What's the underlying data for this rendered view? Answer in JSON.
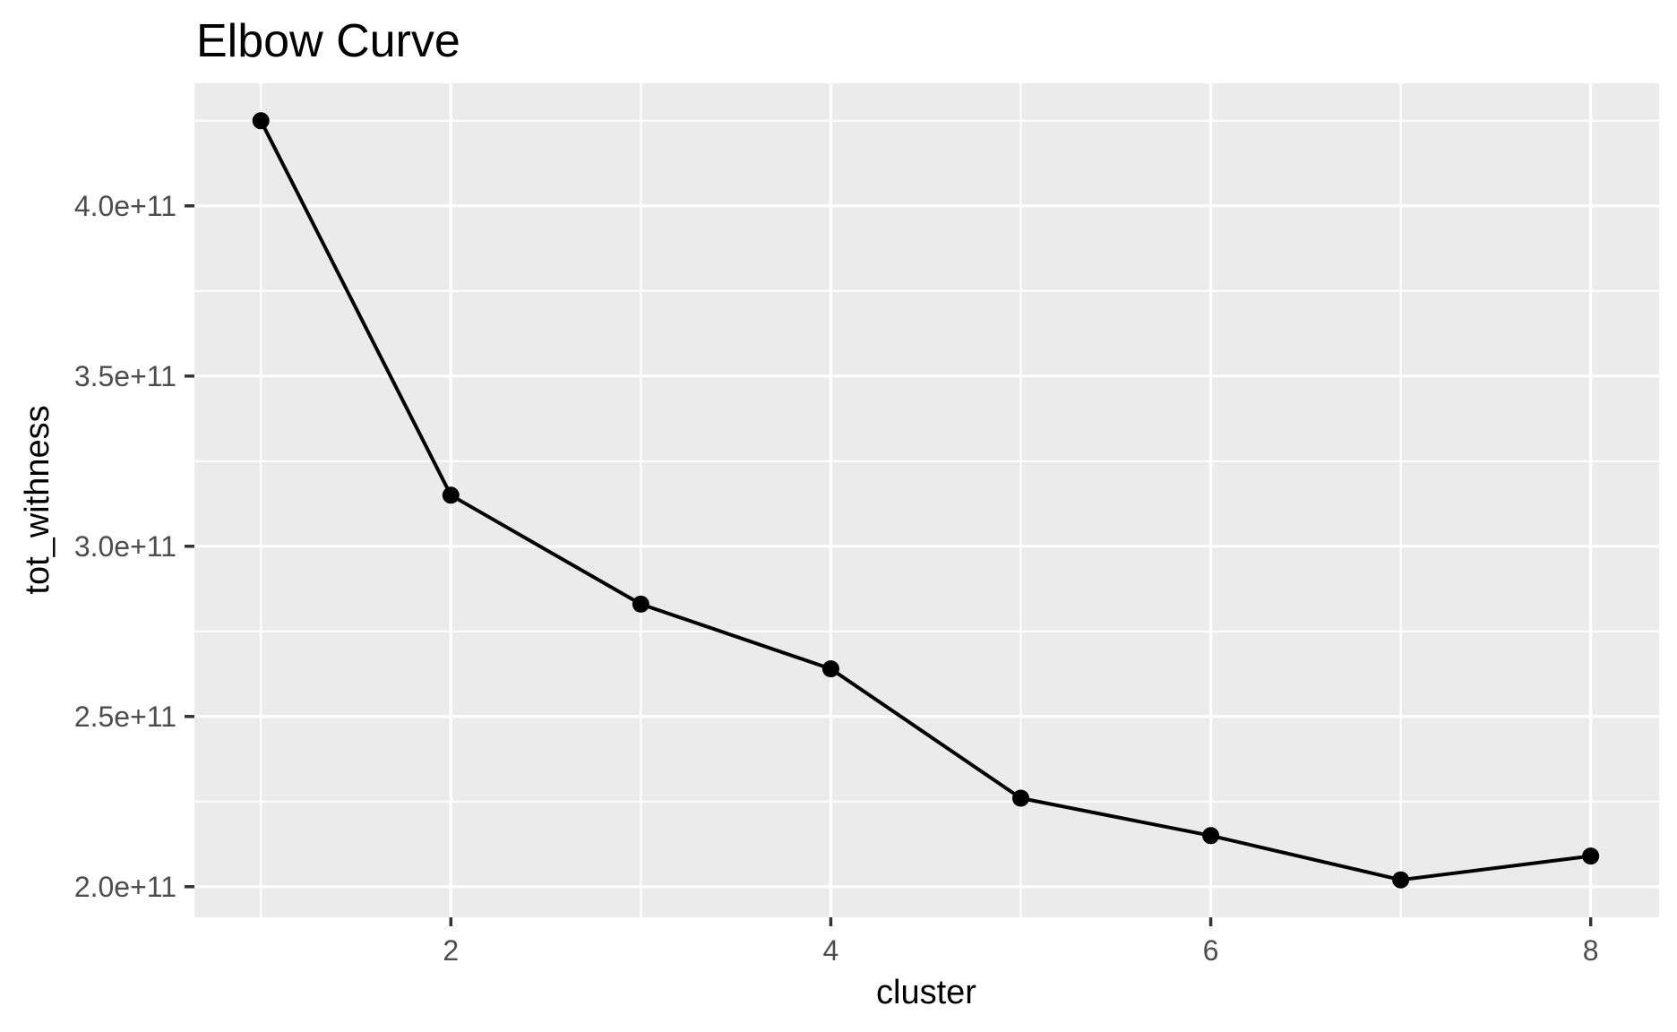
{
  "chart_data": {
    "type": "line",
    "title": "Elbow Curve",
    "xlabel": "cluster",
    "ylabel": "tot_withness",
    "series": [
      {
        "name": "tot_withness",
        "x": [
          1,
          2,
          3,
          4,
          5,
          6,
          7,
          8
        ],
        "y": [
          425000000000.0,
          315000000000.0,
          283000000000.0,
          264000000000.0,
          226000000000.0,
          215000000000.0,
          202000000000.0,
          209000000000.0
        ]
      }
    ],
    "xlim": [
      0.65,
      8.36
    ],
    "ylim": [
      191000000000.0,
      436000000000.0
    ],
    "x_ticks": {
      "values": [
        2,
        4,
        6,
        8
      ],
      "labels": [
        "2",
        "4",
        "6",
        "8"
      ]
    },
    "x_minor_ticks": [
      1,
      3,
      5,
      7
    ],
    "y_ticks": {
      "values": [
        200000000000.0,
        250000000000.0,
        300000000000.0,
        350000000000.0,
        400000000000.0
      ],
      "labels": [
        "2.0e+11",
        "2.5e+11",
        "3.0e+11",
        "3.5e+11",
        "4.0e+11"
      ]
    },
    "y_minor_ticks": [
      225000000000.0,
      275000000000.0,
      325000000000.0,
      375000000000.0,
      425000000000.0
    ],
    "grid": true,
    "legend": "none",
    "style": "ggplot2-gray-panel"
  },
  "colors": {
    "background": "#FFFFFF",
    "panel_background": "#EBEBEB",
    "gridline_major": "#FFFFFF",
    "gridline_minor": "#FFFFFF",
    "tick_mark": "#333333",
    "tick_label": "#4D4D4D",
    "axis_title": "#000000",
    "plot_title": "#000000",
    "line": "#000000",
    "point": "#000000"
  }
}
